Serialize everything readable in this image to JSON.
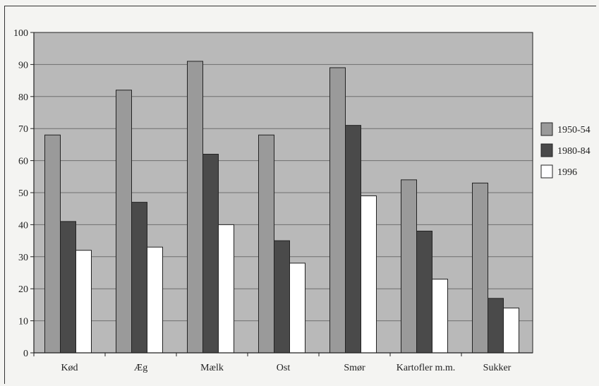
{
  "chart_data": {
    "type": "bar",
    "title": "",
    "xlabel": "",
    "ylabel": "",
    "ylim": [
      0,
      100
    ],
    "yticks": [
      0,
      10,
      20,
      30,
      40,
      50,
      60,
      70,
      80,
      90,
      100
    ],
    "grid": true,
    "legend_position": "right",
    "categories": [
      "Kød",
      "Æg",
      "Mælk",
      "Ost",
      "Smør",
      "Kartofler m.m.",
      "Sukker"
    ],
    "series": [
      {
        "name": "1950-54",
        "color": "#9a9a9a",
        "values": [
          68,
          82,
          91,
          68,
          89,
          54,
          53
        ]
      },
      {
        "name": "1980-84",
        "color": "#4a4a4a",
        "values": [
          41,
          47,
          62,
          35,
          71,
          38,
          17
        ]
      },
      {
        "name": "1996",
        "color": "#ffffff",
        "values": [
          32,
          33,
          40,
          28,
          49,
          23,
          14
        ]
      }
    ],
    "plot_background": "#b9b9b9"
  }
}
